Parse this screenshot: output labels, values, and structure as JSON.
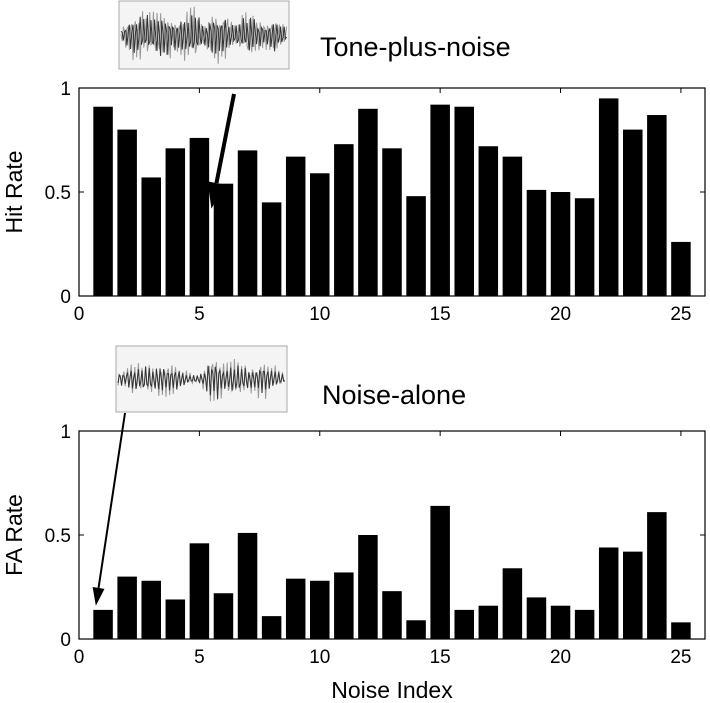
{
  "chart_data": [
    {
      "type": "bar",
      "ylabel": "Hit Rate",
      "xlabel": "",
      "annotation": "Tone-plus-noise",
      "xlim": [
        0,
        26
      ],
      "ylim": [
        0,
        1
      ],
      "xticks": [
        "0",
        "5",
        "10",
        "15",
        "20",
        "25"
      ],
      "yticks": [
        "0",
        "0.5",
        "1"
      ],
      "categories": [
        1,
        2,
        3,
        4,
        5,
        6,
        7,
        8,
        9,
        10,
        11,
        12,
        13,
        14,
        15,
        16,
        17,
        18,
        19,
        20,
        21,
        22,
        23,
        24,
        25
      ],
      "values": [
        0.91,
        0.8,
        0.57,
        0.71,
        0.76,
        0.54,
        0.7,
        0.45,
        0.67,
        0.59,
        0.73,
        0.9,
        0.71,
        0.48,
        0.92,
        0.91,
        0.72,
        0.67,
        0.51,
        0.5,
        0.47,
        0.95,
        0.8,
        0.87,
        0.26
      ],
      "arrow_to": [
        5.5,
        0.42
      ]
    },
    {
      "type": "bar",
      "ylabel": "FA Rate",
      "xlabel": "Noise Index",
      "annotation": "Noise-alone",
      "xlim": [
        0,
        26
      ],
      "ylim": [
        0,
        1
      ],
      "xticks": [
        "0",
        "5",
        "10",
        "15",
        "20",
        "25"
      ],
      "yticks": [
        "0",
        "0.5",
        "1"
      ],
      "categories": [
        1,
        2,
        3,
        4,
        5,
        6,
        7,
        8,
        9,
        10,
        11,
        12,
        13,
        14,
        15,
        16,
        17,
        18,
        19,
        20,
        21,
        22,
        23,
        24,
        25
      ],
      "values": [
        0.14,
        0.3,
        0.28,
        0.19,
        0.46,
        0.22,
        0.51,
        0.11,
        0.29,
        0.28,
        0.32,
        0.5,
        0.23,
        0.09,
        0.64,
        0.14,
        0.16,
        0.34,
        0.2,
        0.16,
        0.14,
        0.44,
        0.42,
        0.61,
        0.08
      ],
      "arrow_to": [
        0.7,
        0.16
      ]
    }
  ]
}
